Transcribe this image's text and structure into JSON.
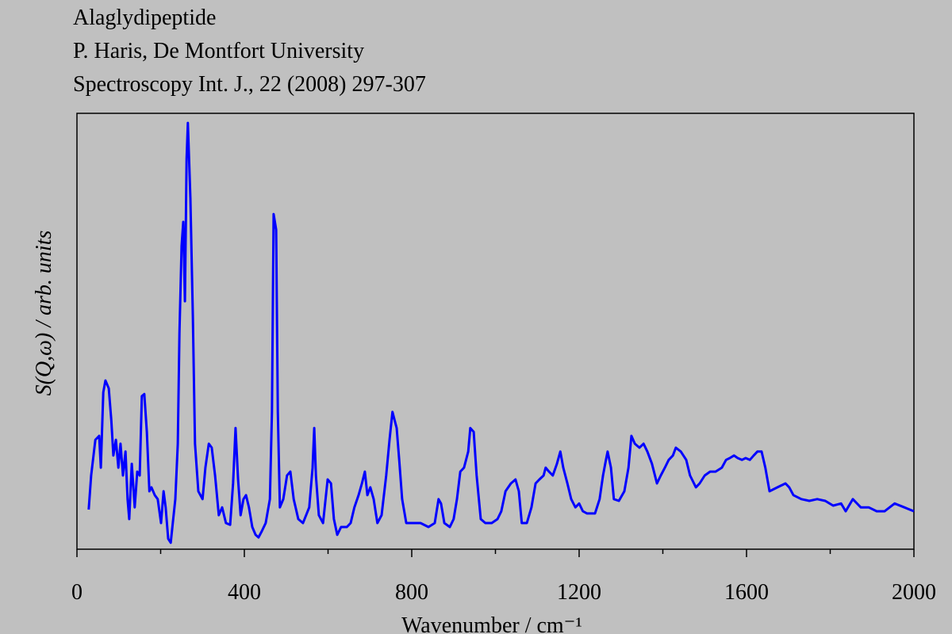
{
  "chart_data": {
    "type": "line",
    "title_lines": [
      "Alaglydipeptide",
      "P. Haris, De Montfort University",
      "Spectroscopy Int. J., 22 (2008) 297-307"
    ],
    "xlabel": "Wavenumber / cm⁻¹",
    "ylabel": "S(Q,ω) / arb. units",
    "xlim": [
      0,
      2000
    ],
    "xticks": [
      0,
      400,
      800,
      1200,
      1600,
      2000
    ],
    "xminorticks": [
      200,
      600,
      1000,
      1400,
      1800
    ],
    "ylim": [
      0,
      100
    ],
    "series": [
      {
        "color": "#0000ff",
        "x": [
          28,
          34,
          44,
          53,
          57,
          63,
          68,
          76,
          82,
          87,
          93,
          99,
          104,
          110,
          116,
          121,
          125,
          131,
          138,
          144,
          150,
          155,
          161,
          167,
          173,
          178,
          186,
          193,
          201,
          207,
          212,
          218,
          224,
          229,
          235,
          241,
          245,
          250,
          254,
          258,
          262,
          265,
          271,
          277,
          282,
          290,
          300,
          307,
          315,
          322,
          330,
          339,
          347,
          356,
          366,
          373,
          379,
          385,
          391,
          398,
          404,
          411,
          419,
          427,
          434,
          442,
          451,
          461,
          466,
          470,
          476,
          480,
          485,
          493,
          502,
          510,
          518,
          529,
          540,
          555,
          563,
          567,
          571,
          578,
          588,
          599,
          607,
          614,
          622,
          631,
          645,
          654,
          663,
          673,
          681,
          688,
          694,
          701,
          709,
          718,
          728,
          739,
          747,
          754,
          764,
          770,
          777,
          787,
          802,
          821,
          840,
          855,
          864,
          870,
          878,
          891,
          900,
          908,
          916,
          925,
          935,
          940,
          948,
          955,
          965,
          976,
          991,
          1005,
          1014,
          1024,
          1037,
          1048,
          1056,
          1063,
          1075,
          1086,
          1096,
          1105,
          1115,
          1120,
          1128,
          1137,
          1147,
          1155,
          1162,
          1172,
          1181,
          1191,
          1200,
          1209,
          1219,
          1238,
          1249,
          1257,
          1264,
          1268,
          1276,
          1283,
          1295,
          1308,
          1318,
          1325,
          1333,
          1344,
          1354,
          1363,
          1374,
          1386,
          1395,
          1405,
          1414,
          1424,
          1431,
          1443,
          1456,
          1465,
          1479,
          1488,
          1500,
          1513,
          1526,
          1541,
          1551,
          1560,
          1570,
          1579,
          1589,
          1598,
          1608,
          1617,
          1626,
          1636,
          1645,
          1655,
          1674,
          1693,
          1702,
          1712,
          1731,
          1750,
          1769,
          1788,
          1807,
          1826,
          1837,
          1854,
          1873,
          1892,
          1911,
          1930,
          1954,
          1977,
          2000
        ],
        "values": [
          9.1,
          16.9,
          25.1,
          26,
          18.7,
          36,
          38.7,
          36.9,
          29.6,
          21.5,
          25.1,
          18.7,
          24.2,
          16.9,
          22.4,
          11.5,
          6.9,
          19.6,
          9.6,
          17.8,
          16.9,
          35.1,
          35.6,
          26.9,
          13.3,
          14.2,
          12.4,
          11.5,
          6,
          13.3,
          9.6,
          2.4,
          1.5,
          6,
          11.5,
          24.2,
          49.6,
          69.6,
          75.1,
          56.9,
          89.6,
          97.8,
          80.5,
          53.3,
          24.2,
          13.3,
          11.5,
          18.7,
          24.2,
          23.3,
          16.9,
          7.8,
          9.6,
          6,
          5.6,
          15.1,
          27.8,
          16,
          7.8,
          11.5,
          12.4,
          9.6,
          5.1,
          3.3,
          2.7,
          4.2,
          6,
          11.5,
          31.5,
          76.9,
          73.3,
          31.5,
          9.6,
          11.5,
          16.9,
          17.8,
          11.5,
          6.9,
          6,
          9.6,
          18.7,
          27.8,
          16.9,
          7.8,
          6,
          16,
          15.1,
          6.9,
          3.3,
          5.1,
          5.1,
          6,
          9.6,
          12.4,
          15.1,
          17.8,
          12.4,
          14.2,
          11.5,
          6,
          7.8,
          16.9,
          25.1,
          31.5,
          27.8,
          20.5,
          11.5,
          6,
          6,
          6,
          5.1,
          6,
          11.5,
          10.5,
          6,
          5.1,
          6.9,
          11.5,
          17.8,
          18.7,
          22.4,
          27.8,
          26.9,
          16.9,
          6.9,
          6,
          6,
          6.9,
          8.7,
          13.3,
          15.1,
          16,
          13.3,
          6,
          6,
          9.6,
          15.1,
          16,
          16.9,
          18.7,
          17.8,
          16.9,
          19.6,
          22.4,
          18.7,
          15.1,
          11.5,
          9.6,
          10.5,
          8.7,
          8.2,
          8.2,
          11.5,
          16.9,
          20.5,
          22.4,
          18.7,
          11.5,
          11.1,
          13.3,
          18.7,
          26,
          24.2,
          23.3,
          24.2,
          22.4,
          19.6,
          15.1,
          16.9,
          18.7,
          20.5,
          21.5,
          23.3,
          22.4,
          20.5,
          16.9,
          14.2,
          15.1,
          16.9,
          17.8,
          17.8,
          18.7,
          20.5,
          20.9,
          21.5,
          20.9,
          20.5,
          20.9,
          20.5,
          21.5,
          22.4,
          22.4,
          18.7,
          13.3,
          14.2,
          15.1,
          14.2,
          12.4,
          11.5,
          11.1,
          11.5,
          11.1,
          10,
          10.5,
          8.7,
          11.5,
          9.6,
          9.6,
          8.7,
          8.7,
          10.5,
          9.6,
          8.7
        ]
      }
    ]
  }
}
